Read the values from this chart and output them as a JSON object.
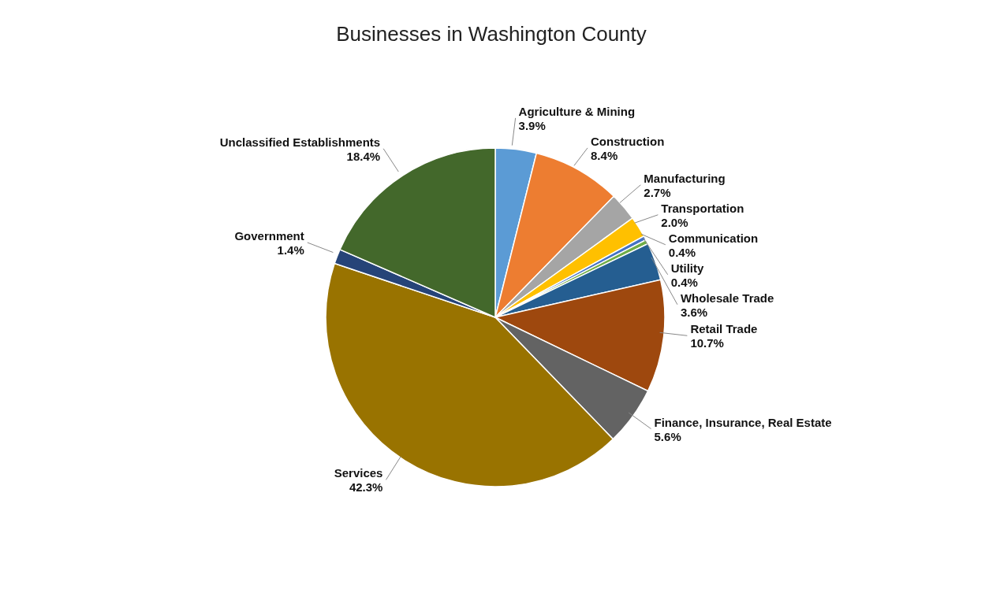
{
  "chart_data": {
    "type": "pie",
    "title": "Businesses in Washington County",
    "categories": [
      "Agriculture & Mining",
      "Construction",
      "Manufacturing",
      "Transportation",
      "Communication",
      "Utility",
      "Wholesale Trade",
      "Retail Trade",
      "Finance, Insurance, Real Estate",
      "Services",
      "Government",
      "Unclassified Establishments"
    ],
    "values": [
      3.9,
      8.4,
      2.7,
      2.0,
      0.4,
      0.4,
      3.6,
      10.7,
      5.6,
      42.3,
      1.4,
      18.4
    ],
    "value_labels": [
      "3.9%",
      "8.4%",
      "2.7%",
      "2.0%",
      "0.4%",
      "0.4%",
      "3.6%",
      "10.7%",
      "5.6%",
      "42.3%",
      "1.4%",
      "18.4%"
    ],
    "colors": [
      "#5b9bd5",
      "#ed7d31",
      "#a5a5a5",
      "#ffc000",
      "#4472c4",
      "#70ad47",
      "#255e91",
      "#9e480e",
      "#636363",
      "#997300",
      "#264478",
      "#43682b"
    ]
  }
}
